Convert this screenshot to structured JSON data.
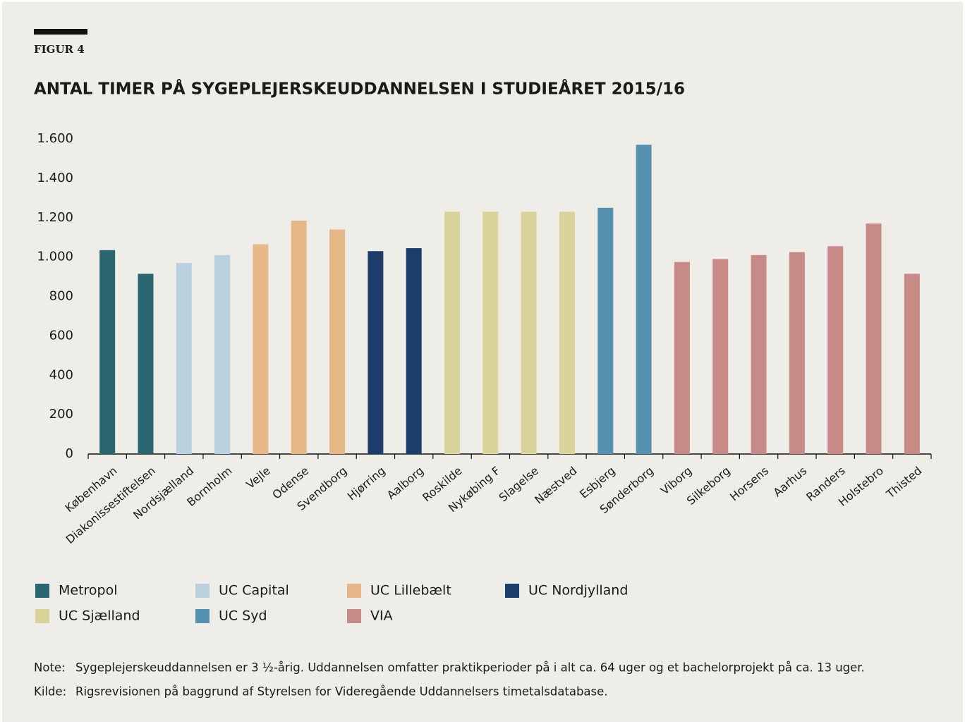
{
  "chart_data": {
    "type": "bar",
    "figure_label": "FIGUR 4",
    "title": "ANTAL TIMER PÅ SYGEPLEJERSKEUDDANNELSEN I STUDIEÅRET 2015/16",
    "categories": [
      "København",
      "Diakonissestiftelsen",
      "Nordsjælland",
      "Bornholm",
      "Vejle",
      "Odense",
      "Svendborg",
      "Hjørring",
      "Aalborg",
      "Roskilde",
      "Nykøbing F",
      "Slagelse",
      "Næstved",
      "Esbjerg",
      "Sønderborg",
      "Viborg",
      "Silkeborg",
      "Horsens",
      "Aarhus",
      "Randers",
      "Holstebro",
      "Thisted"
    ],
    "series": [
      {
        "name": "Metropol",
        "color": "#2a6670",
        "values": [
          1035,
          915,
          null,
          null,
          null,
          null,
          null,
          null,
          null,
          null,
          null,
          null,
          null,
          null,
          null,
          null,
          null,
          null,
          null,
          null,
          null,
          null
        ]
      },
      {
        "name": "UC Capital",
        "color": "#b9d0df",
        "values": [
          null,
          null,
          970,
          1010,
          null,
          null,
          null,
          null,
          null,
          null,
          null,
          null,
          null,
          null,
          null,
          null,
          null,
          null,
          null,
          null,
          null,
          null
        ]
      },
      {
        "name": "UC Lillebælt",
        "color": "#e6b888",
        "values": [
          null,
          null,
          null,
          null,
          1065,
          1185,
          1140,
          null,
          null,
          null,
          null,
          null,
          null,
          null,
          null,
          null,
          null,
          null,
          null,
          null,
          null,
          null
        ]
      },
      {
        "name": "UC Nordjylland",
        "color": "#1d3d6b",
        "values": [
          null,
          null,
          null,
          null,
          null,
          null,
          null,
          1030,
          1045,
          null,
          null,
          null,
          null,
          null,
          null,
          null,
          null,
          null,
          null,
          null,
          null,
          null
        ]
      },
      {
        "name": "UC Sjælland",
        "color": "#d9d49a",
        "values": [
          null,
          null,
          null,
          null,
          null,
          null,
          null,
          null,
          null,
          1230,
          1230,
          1230,
          1230,
          null,
          null,
          null,
          null,
          null,
          null,
          null,
          null,
          null
        ]
      },
      {
        "name": "UC Syd",
        "color": "#5592b1",
        "values": [
          null,
          null,
          null,
          null,
          null,
          null,
          null,
          null,
          null,
          null,
          null,
          null,
          null,
          1250,
          1570,
          null,
          null,
          null,
          null,
          null,
          null,
          null
        ]
      },
      {
        "name": "VIA",
        "color": "#c78a87",
        "values": [
          null,
          null,
          null,
          null,
          null,
          null,
          null,
          null,
          null,
          null,
          null,
          null,
          null,
          null,
          null,
          975,
          990,
          1010,
          1025,
          1055,
          1170,
          915
        ]
      }
    ],
    "ylim": [
      0,
      1600
    ],
    "yticks": [
      0,
      200,
      400,
      600,
      800,
      {
        "value": 1000,
        "label": "1.000"
      },
      {
        "value": 1200,
        "label": "1.200"
      },
      {
        "value": 1400,
        "label": "1.400"
      },
      {
        "value": 1600,
        "label": "1.600"
      }
    ],
    "grid": false,
    "notes": [
      {
        "label": "Note:",
        "text": "Sygeplejerskeuddannelsen er 3 ½-årig. Uddannelsen omfatter praktikperioder på i alt ca. 64 uger og et bachelorprojekt på ca. 13 uger."
      },
      {
        "label": "Kilde:",
        "text": "Rigsrevisionen på baggrund af Styrelsen for Videregående Uddannelsers timetalsdatabase."
      }
    ]
  }
}
